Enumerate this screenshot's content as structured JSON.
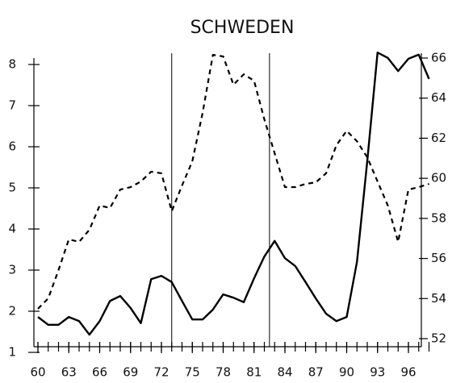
{
  "chart_data": {
    "type": "line",
    "title": "SCHWEDEN",
    "x": [
      60,
      61,
      62,
      63,
      64,
      65,
      66,
      67,
      68,
      69,
      70,
      71,
      72,
      73,
      74,
      75,
      76,
      77,
      78,
      79,
      80,
      81,
      82,
      83,
      84,
      85,
      86,
      87,
      88,
      89,
      90,
      91,
      92,
      93,
      94,
      95,
      96,
      97,
      98
    ],
    "series": [
      {
        "name": "left",
        "color": "#000000",
        "dash": false,
        "values": [
          1.86,
          1.67,
          1.67,
          1.86,
          1.76,
          1.43,
          1.76,
          2.25,
          2.37,
          2.08,
          1.71,
          2.78,
          2.86,
          2.71,
          2.25,
          1.8,
          1.8,
          2.04,
          2.41,
          2.33,
          2.22,
          2.8,
          3.33,
          3.71,
          3.29,
          3.1,
          2.71,
          2.31,
          1.94,
          1.76,
          1.86,
          3.2,
          5.65,
          8.29,
          8.16,
          7.84,
          8.14,
          8.24,
          7.65
        ]
      },
      {
        "name": "right",
        "color": "#000000",
        "dash": true,
        "axis": "y2",
        "values": [
          53.49,
          54.01,
          55.42,
          56.95,
          56.83,
          57.43,
          58.64,
          58.52,
          59.44,
          59.56,
          59.84,
          60.33,
          60.25,
          58.36,
          59.64,
          60.85,
          63.26,
          66.16,
          66.08,
          64.67,
          65.19,
          64.87,
          62.94,
          61.25,
          59.56,
          59.56,
          59.72,
          59.8,
          60.25,
          61.65,
          62.37,
          61.85,
          61.05,
          59.84,
          58.64,
          56.83,
          59.44,
          59.56,
          59.72
        ]
      }
    ],
    "xlim": [
      60,
      96
    ],
    "xticks": [
      60,
      63,
      66,
      69,
      72,
      75,
      78,
      81,
      84,
      87,
      90,
      93,
      96
    ],
    "ylim": [
      1,
      8
    ],
    "yticks": [
      1,
      2,
      3,
      4,
      5,
      6,
      7,
      8
    ],
    "y2lim": [
      52,
      66
    ],
    "y2ticks": [
      52,
      54,
      56,
      58,
      60,
      62,
      64,
      66
    ],
    "vlines": [
      73,
      82.5
    ]
  }
}
